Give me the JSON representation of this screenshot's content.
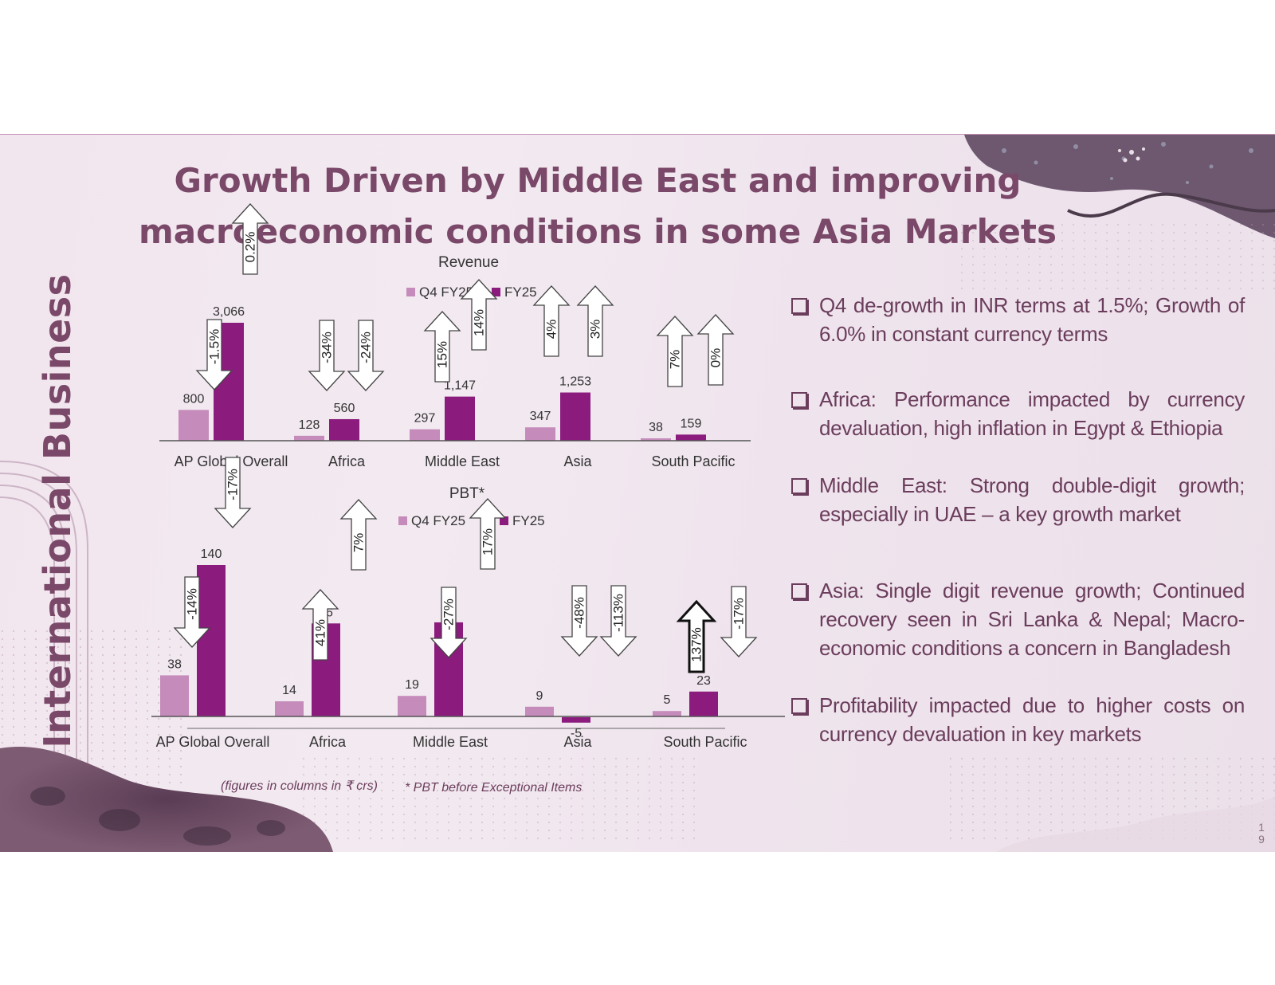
{
  "slide": {
    "section_title": "International Business",
    "title_lines": [
      "Growth Driven by Middle East and improving",
      "macroeconomic conditions in some Asia Markets"
    ],
    "footnote_units": "(figures in columns in ₹ crs)",
    "footnote_pbt": "* PBT before Exceptional Items",
    "page_number": [
      "1",
      "9"
    ]
  },
  "bullets": [
    "Q4 de-growth in INR terms at 1.5%; Growth of 6.0% in constant currency terms",
    "Africa: Performance impacted by currency devaluation, high inflation in Egypt & Ethiopia",
    "Middle East: Strong double-digit growth; especially in UAE – a key growth market",
    "Asia: Single digit revenue growth; Continued recovery seen in Sri Lanka & Nepal; Macro-economic conditions a concern in Bangladesh",
    "Profitability impacted due to higher costs on currency devaluation in key markets"
  ],
  "colors": {
    "q4": "#c58bbb",
    "fy": "#8b1c7e",
    "text": "#7a4868",
    "arrow_stroke": "#444444"
  },
  "chart_data": [
    {
      "type": "bar",
      "title": "Revenue",
      "categories": [
        "AP Global Overall",
        "Africa",
        "Middle East",
        "Asia",
        "South Pacific"
      ],
      "series": [
        {
          "name": "Q4 FY25",
          "values": [
            800,
            128,
            297,
            347,
            38
          ],
          "growth": [
            "-1.5%",
            "-34%",
            "15%",
            "4%",
            "7%"
          ]
        },
        {
          "name": "FY25",
          "values": [
            3066,
            560,
            1147,
            1253,
            159
          ],
          "growth": [
            "0.2%",
            "-24%",
            "14%",
            "3%",
            "0%"
          ]
        }
      ],
      "value_labels": [
        [
          "800",
          "128",
          "297",
          "347",
          "38"
        ],
        [
          "3,066",
          "560",
          "1,147",
          "1,253",
          "159"
        ]
      ],
      "legend": "top-center",
      "ylim": [
        0,
        3300
      ]
    },
    {
      "type": "bar",
      "title": "PBT*",
      "categories": [
        "AP Global Overall",
        "Africa",
        "Middle East",
        "Asia",
        "South Pacific"
      ],
      "series": [
        {
          "name": "Q4 FY25",
          "values": [
            38,
            14,
            19,
            9,
            5
          ],
          "growth": [
            "-14%",
            "41%",
            "-27%",
            "-48%",
            "137%"
          ]
        },
        {
          "name": "FY25",
          "values": [
            140,
            86,
            87,
            -5,
            23
          ],
          "growth": [
            "-17%",
            "7%",
            "17%",
            "-113%",
            "-17%"
          ]
        }
      ],
      "value_labels": [
        [
          "38",
          "14",
          "19",
          "9",
          "5"
        ],
        [
          "140",
          "86",
          "87",
          "-5",
          "23"
        ]
      ],
      "legend": "top-center",
      "ylim": [
        -10,
        150
      ]
    }
  ]
}
